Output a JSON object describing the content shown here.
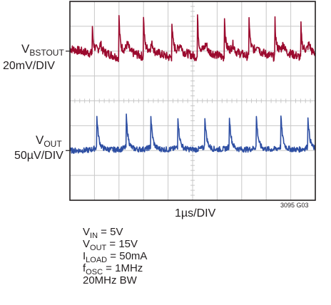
{
  "chart_data": {
    "type": "line",
    "title": "",
    "subtitle": "",
    "xlabel": "1µs/DIV",
    "ylabel": "",
    "grid": true,
    "grid_divisions": {
      "x": 10,
      "y": 8
    },
    "x": [
      0.0,
      0.5,
      1.0,
      1.5,
      2.0,
      2.5,
      3.0,
      3.5,
      4.0,
      4.5,
      5.0,
      5.5,
      6.0,
      6.5,
      7.0,
      7.5,
      8.0,
      8.5,
      9.0,
      9.5,
      10.0
    ],
    "x_unit": "div",
    "ylim": [
      -4,
      4
    ],
    "series": [
      {
        "name": "",
        "channel_label": {
          "main": "V",
          "sub": "BSTOUT"
        },
        "scale": "20mV/DIV",
        "color": "#9b0a2e",
        "baseline_div": 2.0,
        "ripple_shape": "sawtooth with sharp positive spikes",
        "spike_times_div": [
          0.9,
          2.0,
          3.0,
          4.15,
          5.2,
          6.3,
          7.3,
          8.35,
          9.4
        ],
        "spike_height_div": 1.3,
        "ramp_div": 0.4
      },
      {
        "name": "",
        "channel_label": {
          "main": "V",
          "sub": "OUT"
        },
        "scale": "50µV/DIV",
        "color": "#2e4fa3",
        "baseline_div": -2.0,
        "ripple_shape": "sharp positive peaks with exponential decay",
        "spike_times_div": [
          1.1,
          2.3,
          3.3,
          4.4,
          5.5,
          6.5,
          7.6,
          8.6,
          9.7
        ],
        "spike_height_div": 1.25,
        "ramp_div": 0.15
      }
    ],
    "figure_id": "3095 G03"
  },
  "conditions": [
    {
      "main": "V",
      "sub": "IN",
      "rest": " = 5V"
    },
    {
      "main": "V",
      "sub": "OUT",
      "rest": " = 15V"
    },
    {
      "main": "I",
      "sub": "LOAD",
      "rest": " = 50mA"
    },
    {
      "main": "f",
      "sub": "OSC",
      "rest": " = 1MHz"
    },
    {
      "main": "20MHz BW",
      "sub": "",
      "rest": ""
    }
  ],
  "colors": {
    "grid_major": "#c8c8c8",
    "frame": "#231f20"
  }
}
